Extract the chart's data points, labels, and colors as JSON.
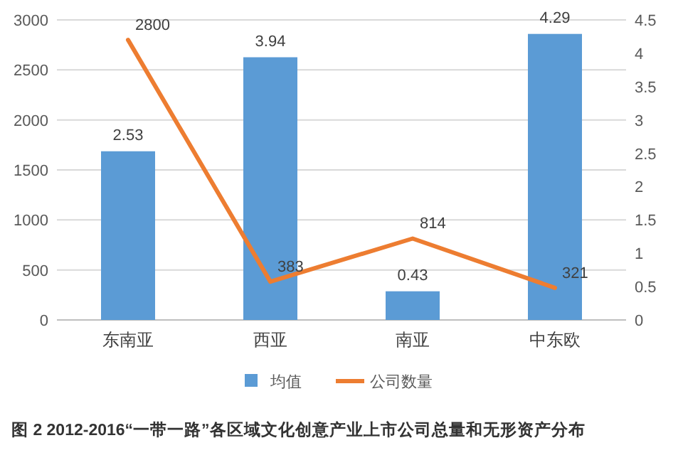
{
  "chart_data": {
    "type": "bar",
    "title": "图 2  2012-2016“一带一路”各区域文化创意产业上市公司总量和无形资产分布",
    "categories": [
      "东南亚",
      "西亚",
      "南亚",
      "中东欧"
    ],
    "series": [
      {
        "name": "均值",
        "axis": "y2",
        "color": "#5b9bd5",
        "values": [
          2.53,
          3.94,
          0.43,
          4.29
        ]
      },
      {
        "name": "公司数量",
        "type": "line",
        "axis": "y",
        "color": "#ed7d31",
        "values": [
          2800,
          383,
          814,
          321
        ]
      }
    ],
    "ylim": [
      0,
      3000
    ],
    "yticks": [
      0,
      500,
      1000,
      1500,
      2000,
      2500,
      3000
    ],
    "y2lim": [
      0,
      4.5
    ],
    "y2ticks": [
      0,
      0.5,
      1,
      1.5,
      2,
      2.5,
      3,
      3.5,
      4,
      4.5
    ],
    "grid": "y",
    "legend": "bottom",
    "data_labels": true,
    "marker": "none"
  }
}
